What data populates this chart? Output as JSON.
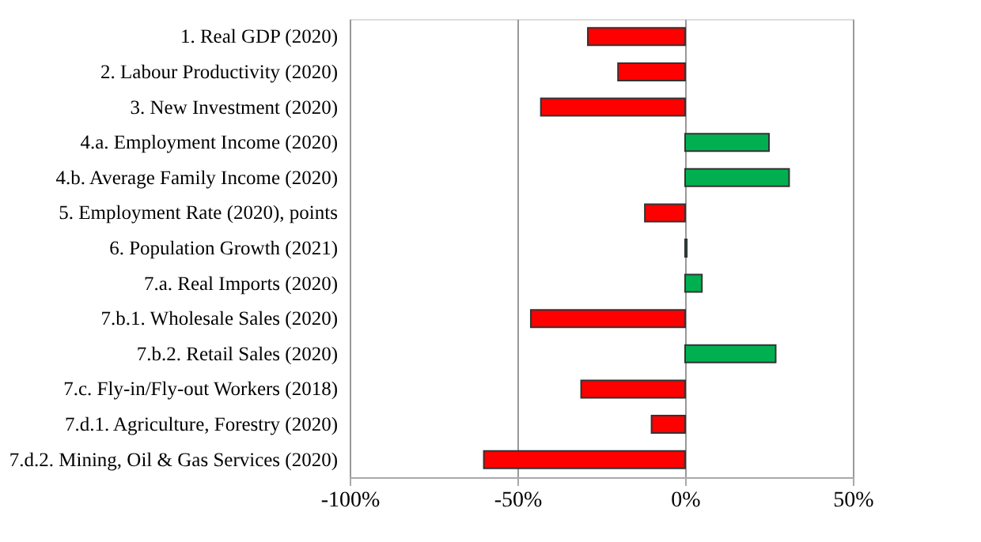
{
  "chart_data": {
    "type": "bar",
    "orientation": "horizontal",
    "categories": [
      "1. Real GDP (2020)",
      "2. Labour Productivity (2020)",
      "3. New Investment (2020)",
      "4.a. Employment Income (2020)",
      "4.b. Average Family Income (2020)",
      "5. Employment Rate (2020), points",
      "6. Population Growth (2021)",
      "7.a. Real Imports (2020)",
      "7.b.1. Wholesale Sales (2020)",
      "7.b.2. Retail Sales (2020)",
      "7.c. Fly-in/Fly-out Workers (2018)",
      "7.d.1. Agriculture, Forestry  (2020)",
      "7.d.2. Mining, Oil & Gas Services (2020)"
    ],
    "values": [
      -29,
      -20,
      -43,
      25,
      31,
      -12,
      0.5,
      5,
      -46,
      27,
      -31,
      -10,
      -60
    ],
    "colors": [
      "#ff0000",
      "#ff0000",
      "#ff0000",
      "#00b050",
      "#00b050",
      "#ff0000",
      "#00b050",
      "#00b050",
      "#ff0000",
      "#00b050",
      "#ff0000",
      "#ff0000",
      "#ff0000"
    ],
    "xlim": [
      -100,
      50
    ],
    "xticks": [
      {
        "value": -100,
        "label": "-100%"
      },
      {
        "value": -50,
        "label": "-50%"
      },
      {
        "value": 0,
        "label": "0%"
      },
      {
        "value": 50,
        "label": "50%"
      }
    ],
    "grid": "x"
  }
}
